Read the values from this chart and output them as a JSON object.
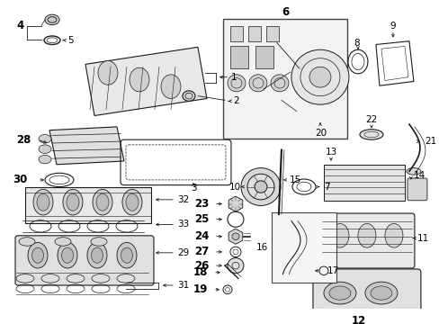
{
  "bg_color": "#ffffff",
  "line_color": "#1a1a1a",
  "fig_width": 4.89,
  "fig_height": 3.6,
  "dpi": 100,
  "fs": 7.5,
  "fs_bold": 8.5
}
